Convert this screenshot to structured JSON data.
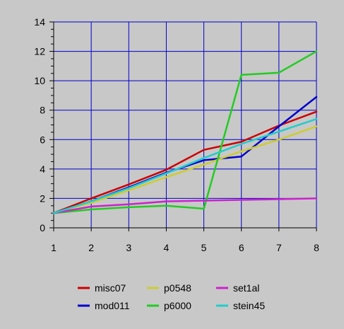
{
  "chart_data": {
    "type": "line",
    "title": "",
    "xlabel": "",
    "ylabel": "",
    "x": [
      1,
      2,
      3,
      4,
      5,
      6,
      7,
      8
    ],
    "xlim": [
      1,
      8
    ],
    "ylim": [
      0,
      14
    ],
    "x_ticks": [
      "1",
      "2",
      "3",
      "4",
      "5",
      "6",
      "7",
      "8"
    ],
    "y_ticks": [
      "0",
      "2",
      "4",
      "6",
      "8",
      "10",
      "12",
      "14"
    ],
    "grid": true,
    "grid_color": "#0000cc",
    "plot_background": "#c8c8c8",
    "legend_position": "bottom",
    "series": [
      {
        "name": "misc07",
        "color": "#cc0000",
        "values": [
          1.0,
          2.0,
          2.95,
          3.95,
          5.3,
          5.85,
          6.95,
          7.9
        ]
      },
      {
        "name": "mod011",
        "color": "#0000cc",
        "values": [
          1.0,
          1.8,
          2.75,
          3.75,
          4.6,
          4.85,
          6.9,
          8.9
        ]
      },
      {
        "name": "p0548",
        "color": "#cccc33",
        "values": [
          1.0,
          1.7,
          2.55,
          3.45,
          4.3,
          5.2,
          6.0,
          6.9
        ]
      },
      {
        "name": "p6000",
        "color": "#22cc22",
        "values": [
          1.0,
          1.25,
          1.4,
          1.5,
          1.3,
          10.4,
          10.55,
          12.0
        ]
      },
      {
        "name": "set1al",
        "color": "#cc22cc",
        "values": [
          1.0,
          1.45,
          1.6,
          1.8,
          1.85,
          1.9,
          1.95,
          2.0
        ]
      },
      {
        "name": "stein45",
        "color": "#22cccc",
        "values": [
          1.0,
          1.8,
          2.7,
          3.7,
          4.75,
          5.7,
          6.55,
          7.4
        ]
      }
    ]
  }
}
